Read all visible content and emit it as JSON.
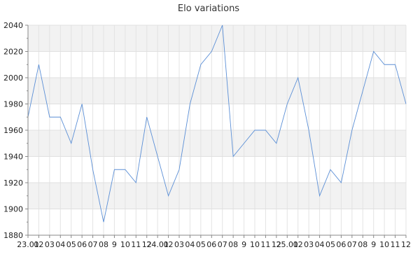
{
  "chart_data": {
    "type": "line",
    "title": "Elo variations",
    "xlabel": "",
    "ylabel": "",
    "ylim": [
      1880,
      2040
    ],
    "y_ticks": [
      1880,
      1900,
      1920,
      1940,
      1960,
      1980,
      2000,
      2020,
      2040
    ],
    "grid": true,
    "legend": "none",
    "series_color": "#5b8fd6",
    "x_tick_labels": [
      "23.01",
      "02",
      "03",
      "04",
      "05",
      "06",
      "07",
      "08",
      "9",
      "10",
      "11",
      "12",
      "24.01",
      "02",
      "03",
      "04",
      "05",
      "06",
      "07",
      "08",
      "9",
      "10",
      "11",
      "12",
      "25.01",
      "02",
      "03",
      "04",
      "05",
      "06",
      "07",
      "08",
      "9",
      "10",
      "11",
      "12"
    ],
    "series": [
      {
        "values": [
          1970,
          2010,
          1970,
          1970,
          1950,
          1980,
          1930,
          1890,
          1930,
          1930,
          1920,
          1970,
          1940,
          1910,
          1930,
          1980,
          2010,
          2020,
          2040,
          1940,
          1950,
          1960,
          1960,
          1950,
          1980,
          2000,
          1960,
          1910,
          1930,
          1920,
          1960,
          1990,
          2020,
          2010,
          2010,
          1980
        ]
      }
    ]
  }
}
